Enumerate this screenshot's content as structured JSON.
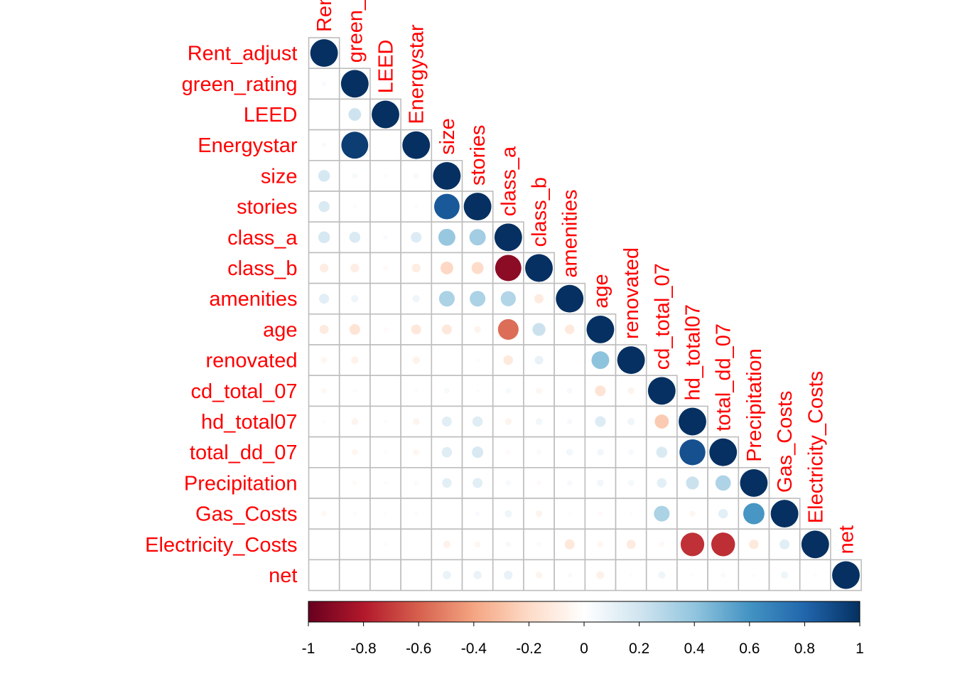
{
  "chart_data": {
    "type": "heatmap",
    "subtype": "lower-triangular correlation matrix (circle glyphs)",
    "variables": [
      "Rent_adjust",
      "green_rating",
      "LEED",
      "Energystar",
      "size",
      "stories",
      "class_a",
      "class_b",
      "amenities",
      "age",
      "renovated",
      "cd_total_07",
      "hd_total07",
      "total_dd_07",
      "Precipitation",
      "Gas_Costs",
      "Electricity_Costs",
      "net"
    ],
    "matrix": [
      [
        1
      ],
      [
        0.03,
        1
      ],
      [
        0.01,
        0.21,
        1
      ],
      [
        0.03,
        0.95,
        0.01,
        1
      ],
      [
        0.18,
        0.04,
        0.02,
        0.04,
        1
      ],
      [
        0.16,
        0.02,
        0.0,
        0.02,
        0.85,
        1
      ],
      [
        0.18,
        0.16,
        0.03,
        0.15,
        0.38,
        0.35,
        1
      ],
      [
        -0.1,
        -0.1,
        -0.03,
        -0.1,
        -0.21,
        -0.19,
        -0.9,
        1
      ],
      [
        0.13,
        0.07,
        0.0,
        0.07,
        0.32,
        0.32,
        0.3,
        -0.11,
        1
      ],
      [
        -0.11,
        -0.15,
        -0.03,
        -0.13,
        -0.13,
        -0.06,
        -0.56,
        0.22,
        -0.12,
        1
      ],
      [
        -0.05,
        -0.07,
        -0.01,
        -0.07,
        0.0,
        0.02,
        -0.12,
        0.1,
        0.0,
        0.41,
        1
      ],
      [
        -0.04,
        0.02,
        0.0,
        0.02,
        0.04,
        0.02,
        0.04,
        -0.05,
        0.04,
        -0.15,
        -0.06,
        1
      ],
      [
        0.02,
        -0.06,
        -0.02,
        -0.06,
        0.13,
        0.14,
        -0.06,
        0.06,
        0.04,
        0.15,
        0.07,
        -0.26,
        1
      ],
      [
        0.0,
        -0.05,
        -0.02,
        -0.05,
        0.14,
        0.17,
        -0.03,
        0.03,
        0.06,
        0.06,
        0.04,
        0.16,
        0.88,
        1
      ],
      [
        0.0,
        -0.03,
        0.02,
        -0.03,
        0.12,
        0.13,
        0.04,
        -0.03,
        0.04,
        0.06,
        0.05,
        0.12,
        0.22,
        0.31,
        1
      ],
      [
        -0.04,
        -0.02,
        0.02,
        -0.02,
        0.0,
        0.03,
        0.07,
        -0.06,
        -0.02,
        -0.03,
        -0.02,
        0.32,
        -0.05,
        0.12,
        0.59,
        1
      ],
      [
        0.0,
        0.0,
        -0.02,
        0.0,
        -0.07,
        -0.05,
        0.04,
        -0.03,
        -0.13,
        -0.05,
        -0.11,
        -0.04,
        -0.73,
        -0.74,
        -0.12,
        0.13,
        1
      ],
      [
        0.0,
        0.01,
        0.0,
        0.01,
        0.09,
        0.09,
        0.1,
        -0.06,
        0.03,
        -0.08,
        0.02,
        0.07,
        0.02,
        0.03,
        0.02,
        0.07,
        0.02,
        1
      ]
    ],
    "color_scale": {
      "min": -1,
      "max": 1,
      "stops": [
        "#67001f",
        "#b2182b",
        "#d6604d",
        "#f4a582",
        "#fddbc7",
        "#ffffff",
        "#d1e5f0",
        "#92c5de",
        "#4393c3",
        "#2166ac",
        "#053061"
      ]
    },
    "colorbar_ticks": [
      "-1",
      "-0.8",
      "-0.6",
      "-0.4",
      "-0.2",
      "0",
      "0.2",
      "0.4",
      "0.6",
      "0.8",
      "1"
    ],
    "label_color": "#ff0000",
    "grid": true,
    "legend_placement": "bottom"
  }
}
